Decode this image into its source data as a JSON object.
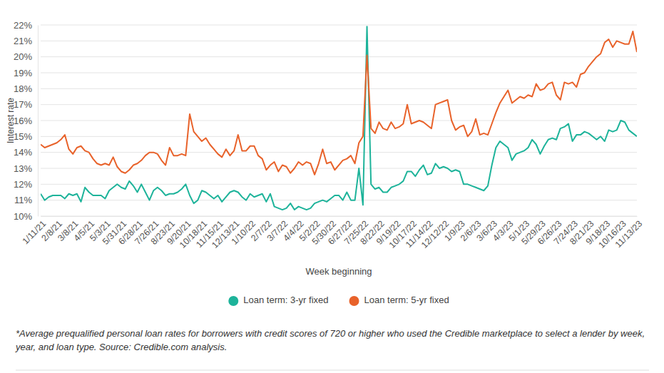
{
  "chart_data": {
    "type": "line",
    "x_label": "Week beginning",
    "y_label": "Interest rate",
    "annotations": [
      "*Average prequalified personal loan rates for borrowers with credit scores of 720 or higher who used the Credible marketplace to select a lender by week, year, and loan type. Source: Credible.com analysis."
    ],
    "categories": [
      "1/11/21",
      null,
      null,
      null,
      "2/8/21",
      null,
      null,
      null,
      "3/8/21",
      null,
      null,
      null,
      "4/5/21",
      null,
      null,
      null,
      "5/3/21",
      null,
      null,
      null,
      "5/31/21",
      null,
      null,
      null,
      "6/28/21",
      null,
      null,
      null,
      "7/26/21",
      null,
      null,
      null,
      "8/23/21",
      null,
      null,
      null,
      "9/20/21",
      null,
      null,
      null,
      "10/18/21",
      null,
      null,
      null,
      "11/15/21",
      null,
      null,
      null,
      "12/13/21",
      null,
      null,
      null,
      "1/10/22",
      null,
      null,
      null,
      "2/7/22",
      null,
      null,
      null,
      "3/7/22",
      null,
      null,
      null,
      "4/4/22",
      null,
      null,
      null,
      "5/2/22",
      null,
      null,
      null,
      "5/30/22",
      null,
      null,
      null,
      "6/27/22",
      null,
      null,
      null,
      "7/25/22",
      null,
      null,
      null,
      "8/22/22",
      null,
      null,
      null,
      "9/19/22",
      null,
      null,
      null,
      "10/17/22",
      null,
      null,
      null,
      "11/14/22",
      null,
      null,
      null,
      "12/12/22",
      null,
      null,
      null,
      "1/9/23",
      null,
      null,
      null,
      "2/6/23",
      null,
      null,
      null,
      "3/6/23",
      null,
      null,
      null,
      "4/3/23",
      null,
      null,
      null,
      "5/1/23",
      null,
      null,
      null,
      "5/29/23",
      null,
      null,
      null,
      "6/26/23",
      null,
      null,
      null,
      "7/24/23",
      null,
      null,
      null,
      "8/21/23",
      null,
      null,
      null,
      "9/18/23",
      null,
      null,
      null,
      "10/16/23",
      null,
      null,
      null,
      "11/13/23"
    ],
    "series": [
      {
        "name": "Loan term: 3-yr fixed",
        "color": "#1db39a",
        "values": [
          11.4,
          11.0,
          11.2,
          11.3,
          11.3,
          11.3,
          11.1,
          11.4,
          11.3,
          11.4,
          10.9,
          11.8,
          11.5,
          11.3,
          11.3,
          11.3,
          11.1,
          11.6,
          11.8,
          12.0,
          11.8,
          11.7,
          12.2,
          11.9,
          11.5,
          12.0,
          11.5,
          11.0,
          11.6,
          11.8,
          11.6,
          11.3,
          11.4,
          11.4,
          11.5,
          11.7,
          12.0,
          11.3,
          10.8,
          11.0,
          11.6,
          11.5,
          11.3,
          11.1,
          11.3,
          10.9,
          11.2,
          11.5,
          11.6,
          11.5,
          11.2,
          11.0,
          11.4,
          11.2,
          11.3,
          11.4,
          10.9,
          11.4,
          10.6,
          10.5,
          10.4,
          10.5,
          10.8,
          10.4,
          10.6,
          10.5,
          10.4,
          10.5,
          10.8,
          10.9,
          11.0,
          10.9,
          11.1,
          11.3,
          11.3,
          11.0,
          11.5,
          11.0,
          11.0,
          13.0,
          10.7,
          21.9,
          12.0,
          11.7,
          11.8,
          11.5,
          11.5,
          11.8,
          11.9,
          12.0,
          12.2,
          12.8,
          12.8,
          12.5,
          12.9,
          13.2,
          12.6,
          12.7,
          13.3,
          13.0,
          13.1,
          13.0,
          12.8,
          12.9,
          12.8,
          12.0,
          12.0,
          11.9,
          11.8,
          11.7,
          11.6,
          11.9,
          13.2,
          14.3,
          14.7,
          14.5,
          14.3,
          13.5,
          13.9,
          14.0,
          14.1,
          14.3,
          14.8,
          14.5,
          13.9,
          14.4,
          14.8,
          14.9,
          14.8,
          15.5,
          15.6,
          15.8,
          14.7,
          15.1,
          15.1,
          15.3,
          15.2,
          15.0,
          14.8,
          15.0,
          14.7,
          15.4,
          15.3,
          15.4,
          16.0,
          15.9,
          15.4,
          15.2,
          15.0
        ]
      },
      {
        "name": "Loan term: 5-yr fixed",
        "color": "#e8622a",
        "values": [
          14.5,
          14.3,
          14.4,
          14.5,
          14.6,
          14.8,
          15.1,
          14.2,
          13.9,
          14.3,
          14.4,
          14.1,
          14.0,
          13.6,
          13.3,
          13.2,
          13.3,
          13.2,
          13.7,
          13.1,
          12.8,
          12.7,
          12.9,
          13.2,
          13.3,
          13.5,
          13.8,
          14.0,
          14.0,
          13.9,
          13.5,
          13.2,
          14.3,
          13.8,
          13.8,
          13.9,
          13.8,
          16.4,
          15.3,
          15.0,
          14.7,
          14.9,
          14.5,
          14.2,
          13.9,
          13.7,
          14.2,
          13.8,
          14.1,
          15.1,
          14.1,
          14.1,
          14.4,
          14.4,
          13.8,
          13.6,
          12.9,
          13.2,
          13.4,
          12.8,
          13.2,
          13.1,
          12.7,
          13.0,
          13.4,
          13.2,
          13.4,
          13.3,
          12.6,
          13.3,
          14.2,
          13.3,
          13.4,
          12.9,
          13.2,
          13.5,
          13.6,
          13.8,
          13.3,
          14.6,
          15.0,
          20.1,
          15.5,
          15.2,
          15.9,
          15.5,
          15.4,
          15.9,
          15.5,
          15.6,
          15.8,
          17.0,
          15.8,
          15.9,
          16.0,
          15.9,
          15.7,
          15.5,
          17.0,
          17.1,
          17.2,
          17.3,
          16.0,
          15.4,
          15.6,
          15.7,
          15.0,
          15.3,
          16.1,
          15.1,
          15.2,
          15.1,
          15.8,
          16.5,
          17.1,
          17.5,
          17.9,
          17.1,
          17.3,
          17.5,
          17.4,
          17.6,
          17.5,
          18.3,
          17.9,
          18.0,
          18.3,
          18.4,
          17.6,
          17.3,
          18.4,
          18.3,
          18.4,
          18.1,
          18.9,
          19.0,
          19.4,
          19.7,
          20.0,
          20.2,
          20.9,
          21.1,
          20.6,
          21.0,
          20.9,
          20.8,
          20.8,
          21.6,
          20.3
        ]
      }
    ],
    "ylim": [
      10,
      22
    ],
    "yticks": [
      {
        "value": 10,
        "label": "10%"
      },
      {
        "value": 11,
        "label": "11%"
      },
      {
        "value": 12,
        "label": "12%"
      },
      {
        "value": 13,
        "label": "13%"
      },
      {
        "value": 14,
        "label": "14%"
      },
      {
        "value": 15,
        "label": "15%"
      },
      {
        "value": 16,
        "label": "16%"
      },
      {
        "value": 17,
        "label": "17%"
      },
      {
        "value": 18,
        "label": "18%"
      },
      {
        "value": 19,
        "label": "19%"
      },
      {
        "value": 20,
        "label": "20%"
      },
      {
        "value": 21,
        "label": "21%"
      },
      {
        "value": 22,
        "label": "22%"
      }
    ],
    "grid": true,
    "legend": "bottom"
  }
}
